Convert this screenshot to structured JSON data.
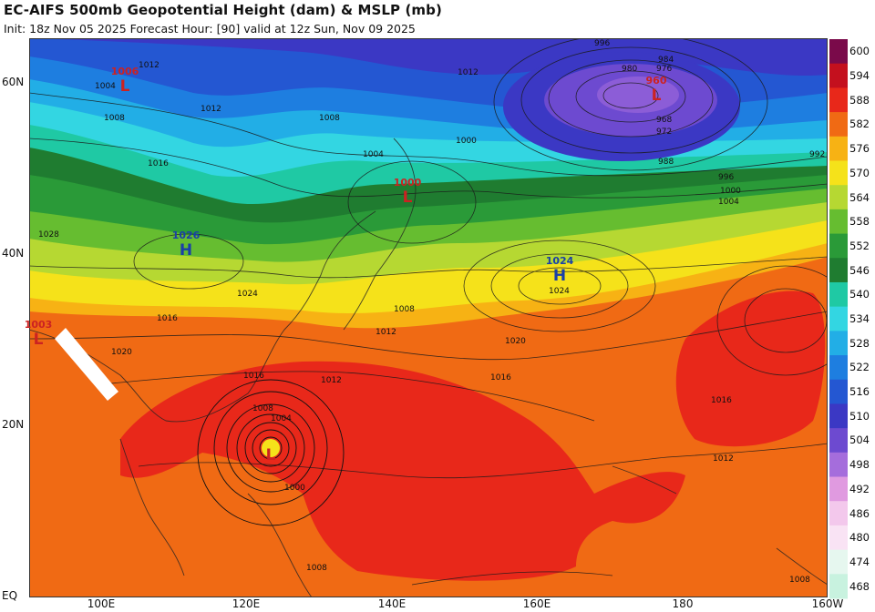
{
  "header": {
    "title": "EC-AIFS 500mb Geopotential Height (dam) & MSLP (mb)",
    "subtitle": "Init: 18z Nov 05 2025   Forecast Hour: [90]   valid at 12z Sun, Nov 09 2025"
  },
  "axes": {
    "lat_labels": [
      "60N",
      "40N",
      "20N",
      "EQ"
    ],
    "lon_labels": [
      "100E",
      "120E",
      "140E",
      "160E",
      "180",
      "160W"
    ]
  },
  "colorbar": {
    "levels": [
      "600",
      "594",
      "588",
      "582",
      "576",
      "570",
      "564",
      "558",
      "552",
      "546",
      "540",
      "534",
      "528",
      "522",
      "516",
      "510",
      "504",
      "498",
      "492",
      "486",
      "480",
      "474",
      "468"
    ],
    "colors": [
      "#7a0a4a",
      "#c4101e",
      "#e8281a",
      "#f06a14",
      "#f7b214",
      "#f5e21a",
      "#b6d832",
      "#66bd30",
      "#2a9a38",
      "#1f7c30",
      "#1fc9a4",
      "#33d6e2",
      "#22aee6",
      "#1e7ee0",
      "#2457d2",
      "#3b38c4",
      "#6d4ad0",
      "#a56ddc",
      "#e09ae0",
      "#f3c8ec",
      "#f9e3f4",
      "#e6f7ef",
      "#c8f2df"
    ]
  },
  "pressure_centers": [
    {
      "type": "L",
      "value": "1006",
      "color": "#cc2222"
    },
    {
      "type": "L",
      "value": "960",
      "color": "#cc2222"
    },
    {
      "type": "L",
      "value": "1000",
      "color": "#cc2222"
    },
    {
      "type": "H",
      "value": "1026",
      "color": "#1a3fa8"
    },
    {
      "type": "H",
      "value": "1024",
      "color": "#1a3fa8"
    },
    {
      "type": "L",
      "value": "1003",
      "color": "#cc2222"
    },
    {
      "type": "L",
      "value": "",
      "color": "#cc2222"
    }
  ],
  "isobar_labels": [
    "1012",
    "1004",
    "1008",
    "1016",
    "1012",
    "1008",
    "1004",
    "1000",
    "996",
    "988",
    "984",
    "980",
    "976",
    "972",
    "968",
    "992",
    "996",
    "1000",
    "1004",
    "1008",
    "1012",
    "1016",
    "1020",
    "1024",
    "1028",
    "1024",
    "1016",
    "1020",
    "1012",
    "1016",
    "1012",
    "1008",
    "1004",
    "1000",
    "1008",
    "1016",
    "1012",
    "1008"
  ]
}
